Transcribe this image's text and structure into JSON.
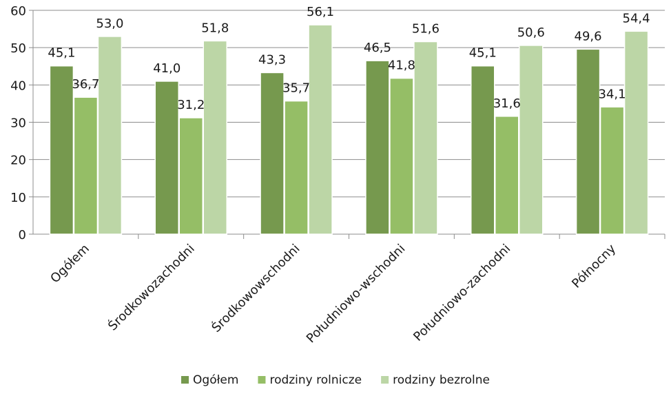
{
  "chart_data": {
    "type": "bar",
    "title": "",
    "xlabel": "",
    "ylabel": "",
    "ylim": [
      0,
      60
    ],
    "yticks": [
      0,
      10,
      20,
      30,
      40,
      50,
      60
    ],
    "grid": "horizontal",
    "legend_position": "bottom",
    "categories": [
      "Ogółem",
      "Środkowozachodni",
      "Środkowowschodni",
      "Południowo-wschodni",
      "Południowo-zachodni",
      "Północny"
    ],
    "series": [
      {
        "name": "Ogółem",
        "color": "#76994e",
        "values": [
          45.1,
          41.0,
          43.3,
          46.5,
          45.1,
          49.6
        ],
        "labels": [
          "45,1",
          "41,0",
          "43,3",
          "46,5",
          "45,1",
          "49,6"
        ]
      },
      {
        "name": "rodziny rolnicze",
        "color": "#95be66",
        "values": [
          36.7,
          31.2,
          35.7,
          41.8,
          31.6,
          34.1
        ],
        "labels": [
          "36,7",
          "31,2",
          "35,7",
          "41,8",
          "31,6",
          "34,1"
        ]
      },
      {
        "name": "rodziny bezrolne",
        "color": "#bcd6a6",
        "values": [
          53.0,
          51.8,
          56.1,
          51.6,
          50.6,
          54.4
        ],
        "labels": [
          "53,0",
          "51,8",
          "56,1",
          "51,6",
          "50,6",
          "54,4"
        ]
      }
    ]
  }
}
